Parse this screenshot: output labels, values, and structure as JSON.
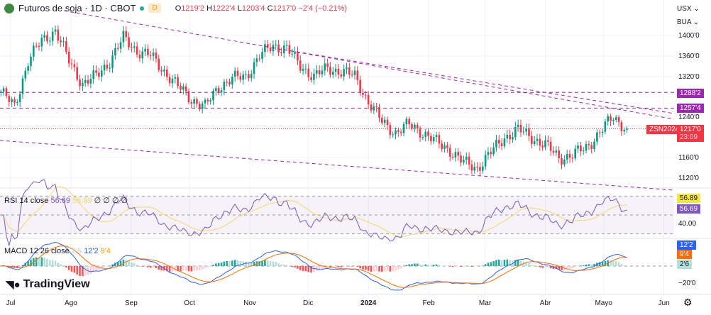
{
  "header": {
    "symbol_title": "Futuros de soja · 1D · CBOT",
    "interval_badge": "D",
    "open_label": "O",
    "open": "1219'2",
    "high_label": "H",
    "high": "1222'4",
    "low_label": "L",
    "low": "1203'4",
    "close_label": "C",
    "close": "1217'0",
    "change": "−2'4 (−0.21%)"
  },
  "axis": {
    "currency": "USX",
    "unit": "BUA",
    "price_ticks": [
      "1400'0",
      "1360'0",
      "1320'0",
      "1240'0",
      "1160'0",
      "1120'0"
    ],
    "level_1": "1288'2",
    "level_2": "1257'4",
    "symbol_tag": "ZSN2024",
    "last_price": "1217'0",
    "countdown": "23:09",
    "rsi_value": "56.69",
    "rsi_ma_value": "56.89",
    "rsi_tick": "40.00",
    "macd_value": "12'2",
    "signal_value": "9'4",
    "hist_value": "2'6",
    "macd_tick": "−20'0"
  },
  "time_axis": [
    "Jul",
    "Ago",
    "Sep",
    "Oct",
    "Nov",
    "Dic",
    "2024",
    "Feb",
    "Mar",
    "Abr",
    "Mayo",
    "Jun"
  ],
  "rsi": {
    "label": "RSI",
    "params": "14 close",
    "value": "56.69",
    "ma_value": "56.89",
    "na": "∅ ∅ ∅ ∅"
  },
  "macd": {
    "label": "MACD",
    "params": "12 26 close",
    "hist": "2'6",
    "macd": "12'2",
    "signal": "9'4"
  },
  "brand": "TradingView",
  "colors": {
    "up": "#089981",
    "down": "#f23645",
    "trend": "#9c27b0",
    "rsi": "#7e57c2",
    "rsi_ma": "#f5d76e",
    "macd": "#2962ff",
    "signal": "#ff6d00"
  },
  "chart_data": {
    "type": "candlestick",
    "ylim": [
      1100,
      1420
    ],
    "weekly_close": [
      [
        "2023-06-26",
        1290
      ],
      [
        "2023-07-03",
        1260
      ],
      [
        "2023-07-10",
        1350
      ],
      [
        "2023-07-17",
        1390
      ],
      [
        "2023-07-24",
        1410
      ],
      [
        "2023-07-31",
        1350
      ],
      [
        "2023-08-07",
        1305
      ],
      [
        "2023-08-14",
        1320
      ],
      [
        "2023-08-21",
        1350
      ],
      [
        "2023-08-28",
        1395
      ],
      [
        "2023-09-04",
        1370
      ],
      [
        "2023-09-11",
        1360
      ],
      [
        "2023-09-18",
        1330
      ],
      [
        "2023-09-25",
        1300
      ],
      [
        "2023-10-02",
        1275
      ],
      [
        "2023-10-09",
        1260
      ],
      [
        "2023-10-16",
        1300
      ],
      [
        "2023-10-23",
        1315
      ],
      [
        "2023-10-30",
        1320
      ],
      [
        "2023-11-06",
        1360
      ],
      [
        "2023-11-13",
        1380
      ],
      [
        "2023-11-20",
        1375
      ],
      [
        "2023-11-27",
        1340
      ],
      [
        "2023-12-04",
        1320
      ],
      [
        "2023-12-11",
        1335
      ],
      [
        "2023-12-18",
        1330
      ],
      [
        "2023-12-25",
        1320
      ],
      [
        "2024-01-01",
        1270
      ],
      [
        "2024-01-08",
        1230
      ],
      [
        "2024-01-15",
        1210
      ],
      [
        "2024-01-22",
        1225
      ],
      [
        "2024-01-29",
        1210
      ],
      [
        "2024-02-05",
        1190
      ],
      [
        "2024-02-12",
        1175
      ],
      [
        "2024-02-19",
        1150
      ],
      [
        "2024-02-26",
        1140
      ],
      [
        "2024-03-04",
        1170
      ],
      [
        "2024-03-11",
        1200
      ],
      [
        "2024-03-18",
        1215
      ],
      [
        "2024-03-25",
        1200
      ],
      [
        "2024-04-01",
        1185
      ],
      [
        "2024-04-08",
        1160
      ],
      [
        "2024-04-15",
        1165
      ],
      [
        "2024-04-22",
        1180
      ],
      [
        "2024-04-29",
        1210
      ],
      [
        "2024-05-06",
        1240
      ],
      [
        "2024-05-13",
        1217
      ]
    ],
    "horizontal_levels": [
      1288.25,
      1257.5
    ],
    "last_price": 1217
  }
}
